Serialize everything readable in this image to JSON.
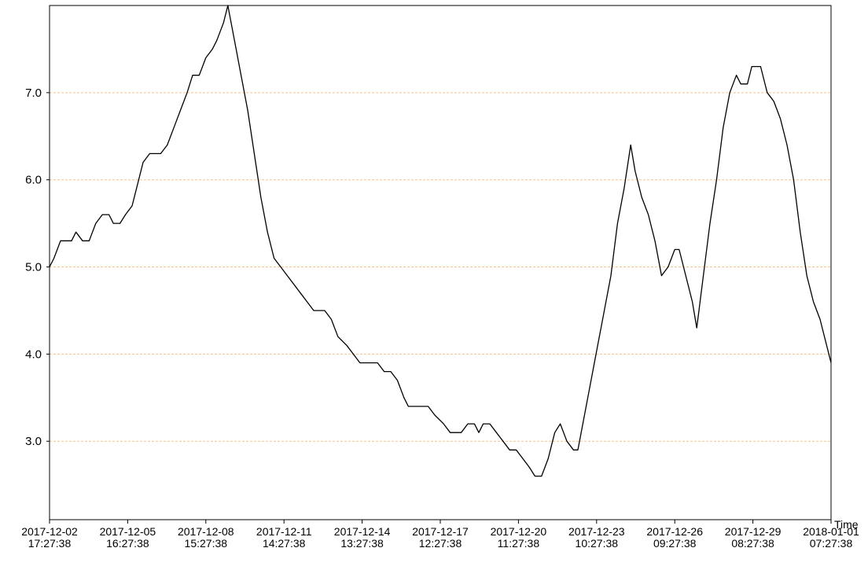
{
  "chart_data": {
    "type": "line",
    "title": "",
    "xlabel": "Time",
    "ylabel": "",
    "grid": "horizontal dashed",
    "legend": "none",
    "colors": {
      "line": "#000000",
      "grid": "#f2c38a",
      "frame": "#000000"
    },
    "ylim": [
      2.1,
      8.0
    ],
    "yticks": [
      3.0,
      4.0,
      5.0,
      6.0,
      7.0
    ],
    "ytick_labels": [
      "3.0",
      "4.0",
      "5.0",
      "6.0",
      "7.0"
    ],
    "xlim": [
      "2017-12-02 17:27:38",
      "2018-01-01 07:27:38"
    ],
    "xticks": [
      "2017-12-02 17:27:38",
      "2017-12-05 16:27:38",
      "2017-12-08 15:27:38",
      "2017-12-11 14:27:38",
      "2017-12-14 13:27:38",
      "2017-12-17 12:27:38",
      "2017-12-20 11:27:38",
      "2017-12-23 10:27:38",
      "2017-12-26 09:27:38",
      "2017-12-29 08:27:38",
      "2018-01-01 07:27:38"
    ],
    "xtick_labels": [
      [
        "2017-12-02",
        "17:27:38"
      ],
      [
        "2017-12-05",
        "16:27:38"
      ],
      [
        "2017-12-08",
        "15:27:38"
      ],
      [
        "2017-12-11",
        "14:27:38"
      ],
      [
        "2017-12-14",
        "13:27:38"
      ],
      [
        "2017-12-17",
        "12:27:38"
      ],
      [
        "2017-12-20",
        "11:27:38"
      ],
      [
        "2017-12-23",
        "10:27:38"
      ],
      [
        "2017-12-26",
        "09:27:38"
      ],
      [
        "2017-12-29",
        "08:27:38"
      ],
      [
        "2018-01-01",
        "07:27:38"
      ]
    ],
    "series": [
      {
        "points": [
          [
            "2017-12-02 17:27:38",
            5.0
          ],
          [
            "2017-12-02 21:27:38",
            5.1
          ],
          [
            "2017-12-03 03:27:38",
            5.3
          ],
          [
            "2017-12-03 13:27:38",
            5.3
          ],
          [
            "2017-12-03 17:27:38",
            5.4
          ],
          [
            "2017-12-03 23:27:38",
            5.3
          ],
          [
            "2017-12-04 05:27:38",
            5.3
          ],
          [
            "2017-12-04 11:27:38",
            5.5
          ],
          [
            "2017-12-04 17:27:38",
            5.6
          ],
          [
            "2017-12-04 23:27:38",
            5.6
          ],
          [
            "2017-12-05 03:27:38",
            5.5
          ],
          [
            "2017-12-05 09:27:38",
            5.5
          ],
          [
            "2017-12-05 14:27:38",
            5.6
          ],
          [
            "2017-12-05 20:27:38",
            5.7
          ],
          [
            "2017-12-06 00:27:38",
            5.9
          ],
          [
            "2017-12-06 06:27:38",
            6.2
          ],
          [
            "2017-12-06 12:27:38",
            6.3
          ],
          [
            "2017-12-06 22:27:38",
            6.3
          ],
          [
            "2017-12-07 04:27:38",
            6.4
          ],
          [
            "2017-12-07 10:27:38",
            6.6
          ],
          [
            "2017-12-07 16:27:38",
            6.8
          ],
          [
            "2017-12-07 22:27:38",
            7.0
          ],
          [
            "2017-12-08 03:27:38",
            7.2
          ],
          [
            "2017-12-08 09:27:38",
            7.2
          ],
          [
            "2017-12-08 15:27:38",
            7.4
          ],
          [
            "2017-12-08 21:27:38",
            7.5
          ],
          [
            "2017-12-09 01:27:38",
            7.6
          ],
          [
            "2017-12-09 07:27:38",
            7.8
          ],
          [
            "2017-12-09 11:27:38",
            8.0
          ],
          [
            "2017-12-09 17:27:38",
            7.6
          ],
          [
            "2017-12-09 23:27:38",
            7.2
          ],
          [
            "2017-12-10 05:27:38",
            6.8
          ],
          [
            "2017-12-10 11:27:38",
            6.3
          ],
          [
            "2017-12-10 17:27:38",
            5.8
          ],
          [
            "2017-12-10 23:27:38",
            5.4
          ],
          [
            "2017-12-11 05:27:38",
            5.1
          ],
          [
            "2017-12-11 11:27:38",
            5.0
          ],
          [
            "2017-12-11 17:27:38",
            4.9
          ],
          [
            "2017-12-11 23:27:38",
            4.8
          ],
          [
            "2017-12-12 05:27:38",
            4.7
          ],
          [
            "2017-12-12 11:27:38",
            4.6
          ],
          [
            "2017-12-12 17:27:38",
            4.5
          ],
          [
            "2017-12-13 03:27:38",
            4.5
          ],
          [
            "2017-12-13 09:27:38",
            4.4
          ],
          [
            "2017-12-13 15:27:38",
            4.2
          ],
          [
            "2017-12-13 23:27:38",
            4.1
          ],
          [
            "2017-12-14 05:27:38",
            4.0
          ],
          [
            "2017-12-14 11:27:38",
            3.9
          ],
          [
            "2017-12-15 03:27:38",
            3.9
          ],
          [
            "2017-12-15 09:27:38",
            3.8
          ],
          [
            "2017-12-15 15:27:38",
            3.8
          ],
          [
            "2017-12-15 21:27:38",
            3.7
          ],
          [
            "2017-12-16 03:27:38",
            3.5
          ],
          [
            "2017-12-16 07:27:38",
            3.4
          ],
          [
            "2017-12-17 01:27:38",
            3.4
          ],
          [
            "2017-12-17 07:27:38",
            3.3
          ],
          [
            "2017-12-17 15:27:38",
            3.2
          ],
          [
            "2017-12-17 21:27:38",
            3.1
          ],
          [
            "2017-12-18 07:27:38",
            3.1
          ],
          [
            "2017-12-18 13:27:38",
            3.2
          ],
          [
            "2017-12-18 19:27:38",
            3.2
          ],
          [
            "2017-12-18 23:27:38",
            3.1
          ],
          [
            "2017-12-19 03:27:38",
            3.2
          ],
          [
            "2017-12-19 09:27:38",
            3.2
          ],
          [
            "2017-12-19 15:27:38",
            3.1
          ],
          [
            "2017-12-19 21:27:38",
            3.0
          ],
          [
            "2017-12-20 03:27:38",
            2.9
          ],
          [
            "2017-12-20 09:27:38",
            2.9
          ],
          [
            "2017-12-20 15:27:38",
            2.8
          ],
          [
            "2017-12-20 21:27:38",
            2.7
          ],
          [
            "2017-12-21 02:27:38",
            2.6
          ],
          [
            "2017-12-21 08:27:38",
            2.6
          ],
          [
            "2017-12-21 14:27:38",
            2.8
          ],
          [
            "2017-12-21 20:27:38",
            3.1
          ],
          [
            "2017-12-22 01:27:38",
            3.2
          ],
          [
            "2017-12-22 07:27:38",
            3.0
          ],
          [
            "2017-12-22 13:27:38",
            2.9
          ],
          [
            "2017-12-22 17:27:38",
            2.9
          ],
          [
            "2017-12-22 23:27:38",
            3.3
          ],
          [
            "2017-12-23 05:27:38",
            3.7
          ],
          [
            "2017-12-23 11:27:38",
            4.1
          ],
          [
            "2017-12-23 17:27:38",
            4.5
          ],
          [
            "2017-12-23 23:27:38",
            4.9
          ],
          [
            "2017-12-24 05:27:38",
            5.5
          ],
          [
            "2017-12-24 11:27:38",
            5.9
          ],
          [
            "2017-12-24 17:27:38",
            6.4
          ],
          [
            "2017-12-24 21:27:38",
            6.1
          ],
          [
            "2017-12-25 03:27:38",
            5.8
          ],
          [
            "2017-12-25 09:27:38",
            5.6
          ],
          [
            "2017-12-25 15:27:38",
            5.3
          ],
          [
            "2017-12-25 21:27:38",
            4.9
          ],
          [
            "2017-12-26 03:27:38",
            5.0
          ],
          [
            "2017-12-26 09:27:38",
            5.2
          ],
          [
            "2017-12-26 13:27:38",
            5.2
          ],
          [
            "2017-12-26 19:27:38",
            4.9
          ],
          [
            "2017-12-27 01:27:38",
            4.6
          ],
          [
            "2017-12-27 05:27:38",
            4.3
          ],
          [
            "2017-12-27 11:27:38",
            4.9
          ],
          [
            "2017-12-27 17:27:38",
            5.5
          ],
          [
            "2017-12-27 23:27:38",
            6.0
          ],
          [
            "2017-12-28 05:27:38",
            6.6
          ],
          [
            "2017-12-28 11:27:38",
            7.0
          ],
          [
            "2017-12-28 17:27:38",
            7.2
          ],
          [
            "2017-12-28 21:27:38",
            7.1
          ],
          [
            "2017-12-29 03:27:38",
            7.1
          ],
          [
            "2017-12-29 07:27:38",
            7.3
          ],
          [
            "2017-12-29 15:27:38",
            7.3
          ],
          [
            "2017-12-29 21:27:38",
            7.0
          ],
          [
            "2017-12-30 03:27:38",
            6.9
          ],
          [
            "2017-12-30 09:27:38",
            6.7
          ],
          [
            "2017-12-30 15:27:38",
            6.4
          ],
          [
            "2017-12-30 21:27:38",
            6.0
          ],
          [
            "2017-12-31 03:27:38",
            5.4
          ],
          [
            "2017-12-31 09:27:38",
            4.9
          ],
          [
            "2017-12-31 15:27:38",
            4.6
          ],
          [
            "2017-12-31 21:27:38",
            4.4
          ],
          [
            "2018-01-01 03:27:38",
            4.1
          ],
          [
            "2018-01-01 07:27:38",
            3.9
          ]
        ]
      }
    ]
  }
}
